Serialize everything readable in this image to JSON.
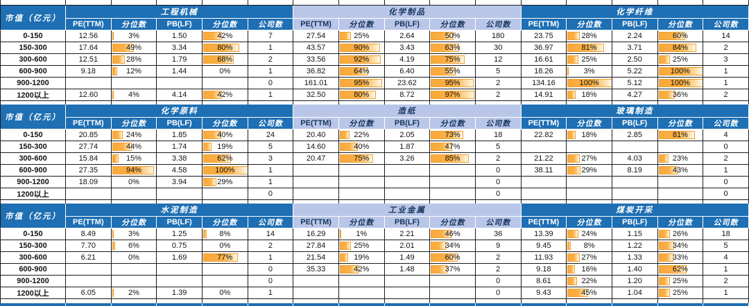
{
  "chart_data": {
    "type": "table",
    "row_header_label": "市值（亿元）",
    "column_headers": [
      "PE(TTM)",
      "分位数",
      "PB(LF)",
      "分位数",
      "公司数"
    ],
    "row_labels": [
      "0-150",
      "150-300",
      "300-600",
      "600-900",
      "900-1200",
      "1200以上"
    ],
    "groups": [
      {
        "industries": [
          {
            "name": "工程机械",
            "theme": "dark",
            "rows": [
              [
                "12.56",
                "3%",
                "1.50",
                "42%",
                "7"
              ],
              [
                "17.64",
                "49%",
                "3.34",
                "80%",
                "1"
              ],
              [
                "12.51",
                "28%",
                "1.79",
                "68%",
                "2"
              ],
              [
                "9.18",
                "12%",
                "1.44",
                "0%",
                "1"
              ],
              [
                "",
                "",
                "",
                "",
                "0"
              ],
              [
                "12.60",
                "4%",
                "4.14",
                "42%",
                "1"
              ]
            ]
          },
          {
            "name": "化学制品",
            "theme": "light",
            "rows": [
              [
                "27.54",
                "25%",
                "2.64",
                "50%",
                "180"
              ],
              [
                "43.57",
                "90%",
                "3.43",
                "63%",
                "30"
              ],
              [
                "33.56",
                "92%",
                "4.19",
                "75%",
                "12"
              ],
              [
                "36.82",
                "64%",
                "6.40",
                "55%",
                "5"
              ],
              [
                "161.01",
                "95%",
                "23.62",
                "95%",
                "2"
              ],
              [
                "32.50",
                "80%",
                "8.72",
                "97%",
                "2"
              ]
            ]
          },
          {
            "name": "化学纤维",
            "theme": "dark",
            "rows": [
              [
                "23.75",
                "28%",
                "2.24",
                "60%",
                "14"
              ],
              [
                "36.97",
                "81%",
                "3.71",
                "84%",
                "2"
              ],
              [
                "16.61",
                "25%",
                "2.50",
                "25%",
                "3"
              ],
              [
                "18.26",
                "3%",
                "5.22",
                "100%",
                "1"
              ],
              [
                "134.16",
                "100%",
                "5.12",
                "100%",
                "1"
              ],
              [
                "14.91",
                "18%",
                "4.27",
                "36%",
                "2"
              ]
            ]
          }
        ]
      },
      {
        "industries": [
          {
            "name": "化学原料",
            "theme": "dark",
            "rows": [
              [
                "20.85",
                "24%",
                "1.85",
                "40%",
                "24"
              ],
              [
                "27.74",
                "44%",
                "1.74",
                "19%",
                "5"
              ],
              [
                "15.84",
                "15%",
                "3.38",
                "62%",
                "3"
              ],
              [
                "27.35",
                "94%",
                "4.58",
                "100%",
                "1"
              ],
              [
                "18.09",
                "0%",
                "3.94",
                "29%",
                "1"
              ],
              [
                "",
                "",
                "",
                "",
                "0"
              ]
            ]
          },
          {
            "name": "造纸",
            "theme": "light",
            "rows": [
              [
                "20.40",
                "22%",
                "2.05",
                "73%",
                "18"
              ],
              [
                "14.60",
                "40%",
                "1.87",
                "47%",
                "5"
              ],
              [
                "20.47",
                "75%",
                "3.26",
                "85%",
                "2"
              ],
              [
                "",
                "",
                "",
                "",
                "0"
              ],
              [
                "",
                "",
                "",
                "",
                "0"
              ],
              [
                "",
                "",
                "",
                "",
                "0"
              ]
            ]
          },
          {
            "name": "玻璃制造",
            "theme": "dark",
            "rows": [
              [
                "22.82",
                "18%",
                "2.85",
                "81%",
                "4"
              ],
              [
                "",
                "",
                "",
                "",
                "0"
              ],
              [
                "21.22",
                "27%",
                "4.03",
                "23%",
                "2"
              ],
              [
                "38.11",
                "29%",
                "8.19",
                "43%",
                "1"
              ],
              [
                "",
                "",
                "",
                "",
                "0"
              ],
              [
                "",
                "",
                "",
                "",
                "0"
              ]
            ]
          }
        ]
      },
      {
        "industries": [
          {
            "name": "水泥制造",
            "theme": "dark",
            "rows": [
              [
                "8.49",
                "3%",
                "1.25",
                "8%",
                "14"
              ],
              [
                "7.70",
                "6%",
                "0.75",
                "0%",
                "2"
              ],
              [
                "6.21",
                "0%",
                "1.69",
                "77%",
                "1"
              ],
              [
                "",
                "",
                "",
                "",
                "0"
              ],
              [
                "",
                "",
                "",
                "",
                "0"
              ],
              [
                "6.05",
                "2%",
                "1.39",
                "0%",
                "1"
              ]
            ]
          },
          {
            "name": "工业金属",
            "theme": "light",
            "rows": [
              [
                "16.29",
                "1%",
                "2.21",
                "46%",
                "36"
              ],
              [
                "27.84",
                "25%",
                "2.01",
                "34%",
                "9"
              ],
              [
                "21.54",
                "19%",
                "1.49",
                "60%",
                "2"
              ],
              [
                "35.33",
                "42%",
                "1.48",
                "37%",
                "2"
              ],
              [
                "",
                "",
                "",
                "",
                "0"
              ],
              [
                "",
                "",
                "",
                "",
                "0"
              ]
            ]
          },
          {
            "name": "煤炭开采",
            "theme": "dark",
            "rows": [
              [
                "13.39",
                "24%",
                "1.15",
                "26%",
                "18"
              ],
              [
                "9.45",
                "8%",
                "1.22",
                "34%",
                "5"
              ],
              [
                "11.93",
                "27%",
                "1.33",
                "33%",
                "4"
              ],
              [
                "9.18",
                "16%",
                "1.40",
                "62%",
                "1"
              ],
              [
                "8.61",
                "22%",
                "1.20",
                "25%",
                "2"
              ],
              [
                "9.43",
                "45%",
                "1.04",
                "25%",
                "1"
              ]
            ]
          }
        ]
      }
    ],
    "colors": {
      "header_dark": "#1E6FB3",
      "header_light": "#B9C6E8",
      "bar_fill": "#FBAE3E",
      "bar_border": "#F09F32",
      "grid": "#1a1a1a"
    }
  }
}
